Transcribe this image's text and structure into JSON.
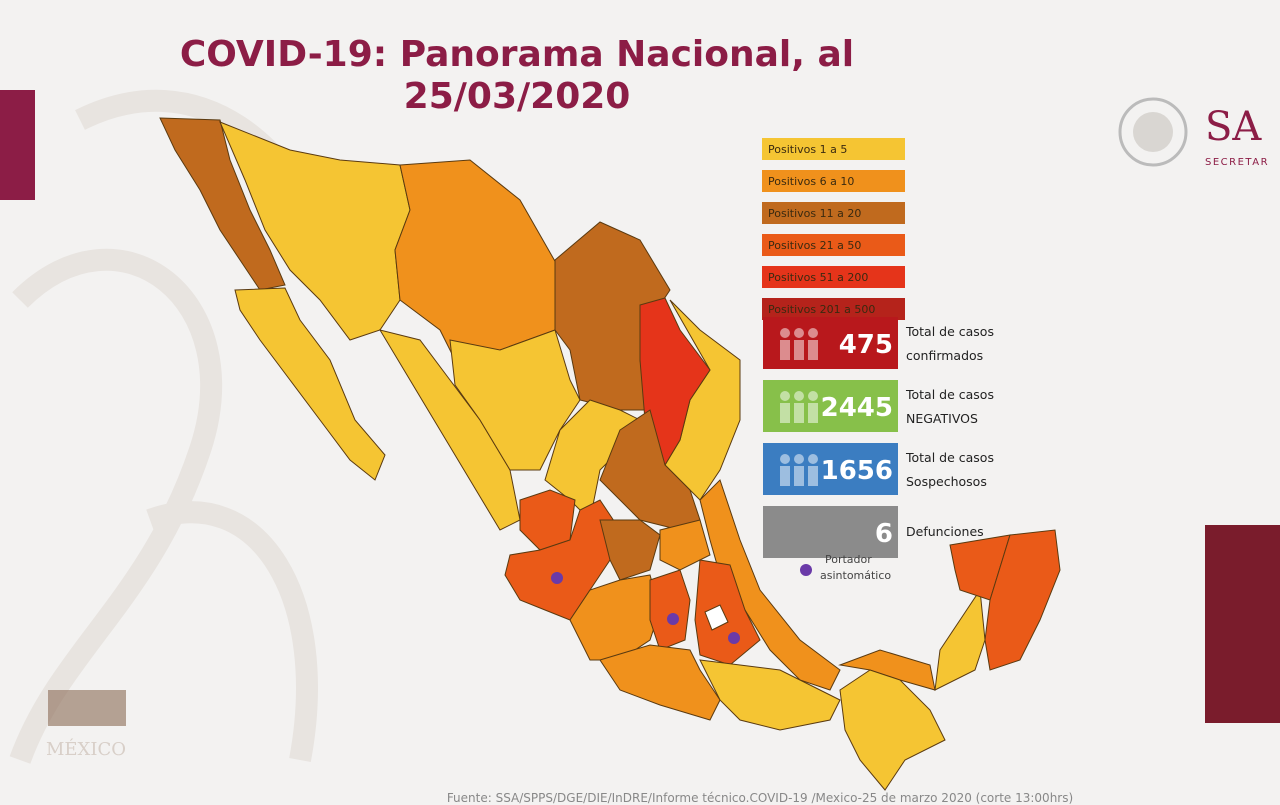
{
  "title_lines": [
    "COVID-19: Panorama Nacional, al",
    "25/03/2020"
  ],
  "logo": {
    "name": "SA",
    "subtitle": "SECRETAR"
  },
  "legend": [
    {
      "label": "Positivos 1 a 5",
      "color": "#f5c533"
    },
    {
      "label": "Positivos 6 a 10",
      "color": "#f0911c"
    },
    {
      "label": "Positivos 11 a 20",
      "color": "#c06a1e"
    },
    {
      "label": "Positivos 21 a 50",
      "color": "#ea5a18"
    },
    {
      "label": "Positivos 51 a 200",
      "color": "#e5341a"
    },
    {
      "label": "Positivos 201 a 500",
      "color": "#b5231b"
    }
  ],
  "stats": [
    {
      "value": 475,
      "label_lines": [
        "Total de casos",
        "confirmados"
      ],
      "color": "#b8181c"
    },
    {
      "value": 2445,
      "label_lines": [
        "Total de casos",
        "NEGATIVOS"
      ],
      "color": "#87c04a"
    },
    {
      "value": 1656,
      "label_lines": [
        "Total de casos",
        "Sospechosos"
      ],
      "color": "#3b7dc1"
    },
    {
      "value": 6,
      "label_lines": [
        "Defunciones"
      ],
      "color": "#8b8b8b"
    }
  ],
  "marker_legend": [
    "Portador",
    "asintomático"
  ],
  "source": "Fuente: SSA/SPPS/DGE/DIE/InDRE/Informe técnico.COVID-19 /Mexico-25 de marzo 2020 (corte 13:00hrs)"
}
